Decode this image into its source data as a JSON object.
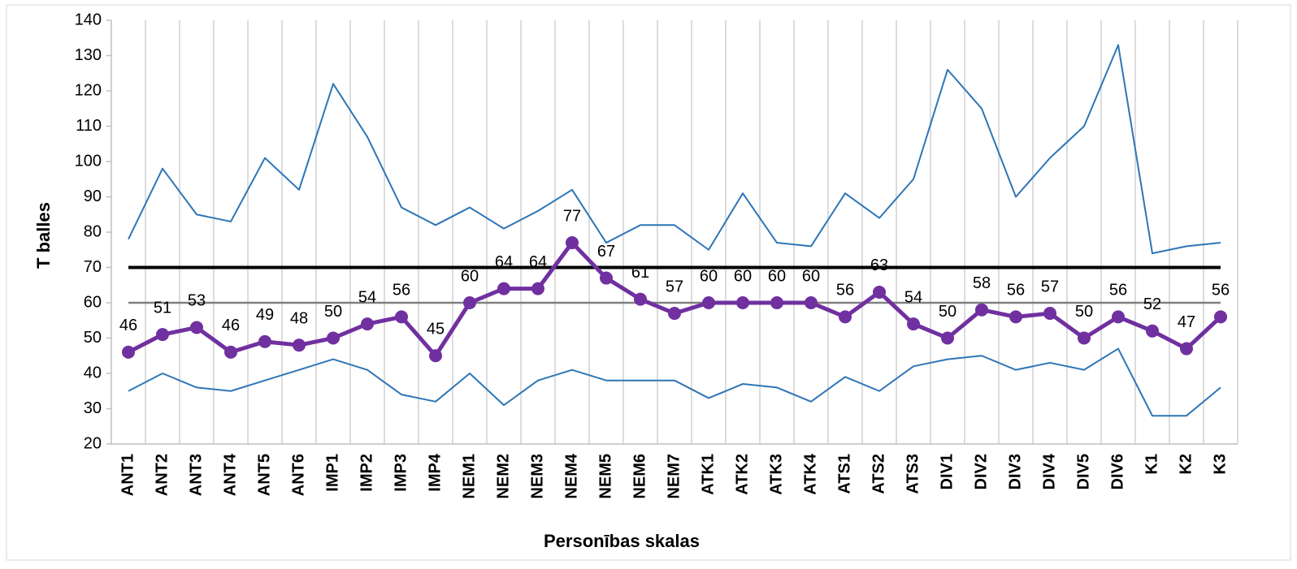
{
  "chart_data": {
    "type": "line",
    "x_label": "Personības skalas",
    "y_label": "T balles",
    "categories": [
      "ANT1",
      "ANT2",
      "ANT3",
      "ANT4",
      "ANT5",
      "ANT6",
      "IMP1",
      "IMP2",
      "IMP3",
      "IMP4",
      "NEM1",
      "NEM2",
      "NEM3",
      "NEM4",
      "NEM5",
      "NEM6",
      "NEM7",
      "ATK1",
      "ATK2",
      "ATK3",
      "ATK4",
      "ATS1",
      "ATS2",
      "ATS3",
      "DIV1",
      "DIV2",
      "DIV3",
      "DIV4",
      "DIV5",
      "DIV6",
      "K1",
      "K2",
      "K3"
    ],
    "series": [
      {
        "color": "#2e75b6",
        "width": 2,
        "values": [
          78,
          98,
          85,
          83,
          101,
          92,
          122,
          107,
          87,
          82,
          87,
          81,
          86,
          92,
          77,
          82,
          82,
          75,
          91,
          77,
          76,
          91,
          84,
          95,
          126,
          115,
          90,
          101,
          110,
          133,
          74,
          76,
          77
        ]
      },
      {
        "color": "#2e75b6",
        "width": 2,
        "values": [
          35,
          40,
          36,
          35,
          38,
          41,
          44,
          41,
          34,
          32,
          40,
          31,
          38,
          41,
          38,
          38,
          38,
          33,
          37,
          36,
          32,
          39,
          35,
          42,
          44,
          45,
          41,
          43,
          41,
          47,
          28,
          28,
          36
        ]
      },
      {
        "color": "#808080",
        "width": 2.5,
        "values": [
          60,
          60,
          60,
          60,
          60,
          60,
          60,
          60,
          60,
          60,
          60,
          60,
          60,
          60,
          60,
          60,
          60,
          60,
          60,
          60,
          60,
          60,
          60,
          60,
          60,
          60,
          60,
          60,
          60,
          60,
          60,
          60,
          60
        ]
      },
      {
        "color": "#000000",
        "width": 4,
        "values": [
          70,
          70,
          70,
          70,
          70,
          70,
          70,
          70,
          70,
          70,
          70,
          70,
          70,
          70,
          70,
          70,
          70,
          70,
          70,
          70,
          70,
          70,
          70,
          70,
          70,
          70,
          70,
          70,
          70,
          70,
          70,
          70,
          70
        ]
      },
      {
        "color": "#7030a0",
        "width": 5,
        "markers": true,
        "data_labels": true,
        "values": [
          46,
          51,
          53,
          46,
          49,
          48,
          50,
          54,
          56,
          45,
          60,
          64,
          64,
          77,
          67,
          61,
          57,
          60,
          60,
          60,
          60,
          56,
          63,
          54,
          50,
          58,
          56,
          57,
          50,
          56,
          52,
          47,
          56
        ]
      }
    ],
    "ylim": [
      20,
      140
    ],
    "yticks": [
      20,
      30,
      40,
      50,
      60,
      70,
      80,
      90,
      100,
      110,
      120,
      130,
      140
    ],
    "category_grid": true
  }
}
